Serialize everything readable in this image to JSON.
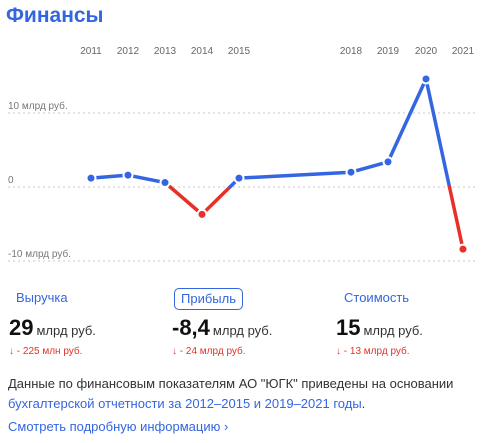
{
  "header": {
    "title": "Финансы"
  },
  "chart_data": {
    "type": "line",
    "x": [
      "2011",
      "2012",
      "2013",
      "2014",
      "2015",
      "2018",
      "2019",
      "2020",
      "2021"
    ],
    "x_tick_labels": [
      "2011",
      "2012",
      "2013",
      "2014",
      "2015",
      "2018",
      "2019",
      "2020",
      "2021"
    ],
    "series": [
      {
        "values": [
          1.2,
          1.6,
          0.6,
          -3.7,
          1.2,
          2.0,
          3.4,
          14.6,
          -8.4
        ]
      }
    ],
    "y_tick_labels": [
      "10 млрд руб.",
      "0",
      "-10 млрд руб."
    ],
    "y_ticks": [
      10,
      0,
      -10
    ],
    "ylim": [
      -11,
      17
    ],
    "colors": {
      "positive": "#3366e0",
      "negative": "#e8302a",
      "point_fill": "#3366e0",
      "point_stroke": "#ffffff"
    }
  },
  "metrics": [
    {
      "label": "Выручка",
      "value": "29",
      "unit": "млрд руб.",
      "change": "↓ - 225 млн руб.",
      "active": false
    },
    {
      "label": "Прибыль",
      "value": "-8,4",
      "unit": "млрд руб.",
      "change": "↓ - 24 млрд руб.",
      "active": true
    },
    {
      "label": "Стоимость",
      "value": "15",
      "unit": "млрд руб.",
      "change": "↓ - 13 млрд руб.",
      "active": false
    }
  ],
  "note": {
    "text_before": "Данные по финансовым показателям АО \"ЮГК\" приведены на основании ",
    "link_text": "бухгалтерской отчетности за 2012–2015 и 2019–2021 годы",
    "text_after": "."
  },
  "more_link": {
    "label": "Смотреть подробную информацию",
    "arrow": "›"
  }
}
